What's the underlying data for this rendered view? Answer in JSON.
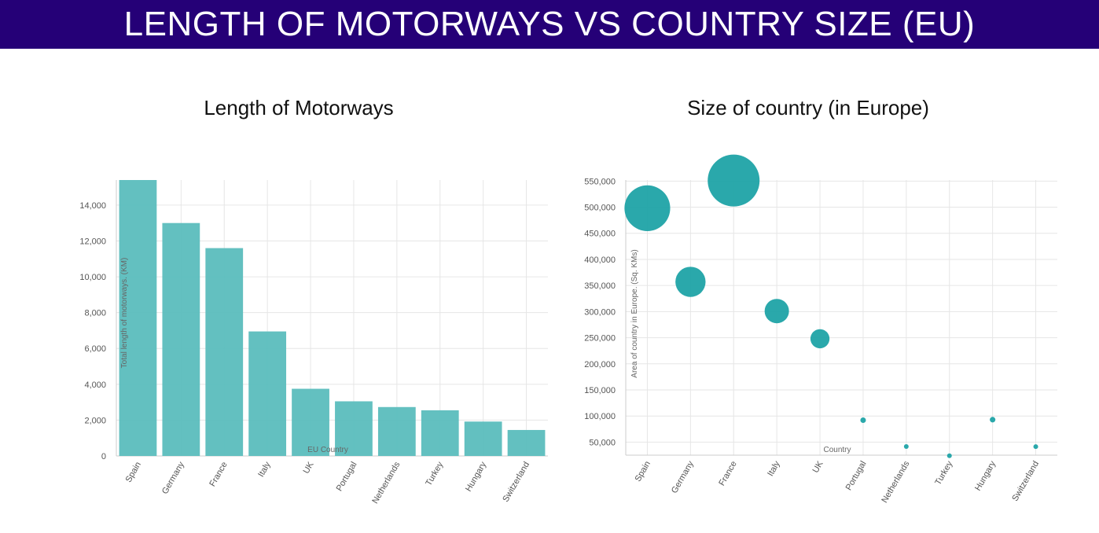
{
  "header": {
    "title": "LENGTH OF MOTORWAYS VS COUNTRY SIZE (EU)"
  },
  "colors": {
    "banner": "#250077",
    "bar": "#5bbdbd",
    "bubble": "#1fa3a6"
  },
  "chart_data": [
    {
      "type": "bar",
      "title": "Length of Motorways",
      "xlabel": "EU Country",
      "ylabel": "Total length of motorways. (KM)",
      "categories": [
        "Spain",
        "Germany",
        "France",
        "Italy",
        "UK",
        "Portugal",
        "Netherlands",
        "Turkey",
        "Hungary",
        "Switzerland"
      ],
      "values": [
        15400,
        13000,
        11600,
        6950,
        3750,
        3050,
        2730,
        2550,
        1920,
        1450
      ],
      "ylim": [
        0,
        15400
      ],
      "yticks": [
        0,
        2000,
        4000,
        6000,
        8000,
        10000,
        12000,
        14000
      ],
      "ytick_labels": [
        "0",
        "2,000",
        "4,000",
        "6,000",
        "8,000",
        "10,000",
        "12,000",
        "14,000"
      ],
      "grid": true
    },
    {
      "type": "scatter",
      "title": "Size of country (in Europe)",
      "xlabel": "Country",
      "ylabel": "Area of country in Europe. (Sq. KMs)",
      "categories": [
        "Spain",
        "Germany",
        "France",
        "Italy",
        "UK",
        "Portugal",
        "Netherlands",
        "Turkey",
        "Hungary",
        "Switzerland"
      ],
      "values": [
        498000,
        357000,
        551000,
        301000,
        248000,
        92000,
        41500,
        23800,
        93000,
        41300
      ],
      "bubble_size_by": "value",
      "ylim": [
        25000,
        552000
      ],
      "yticks": [
        50000,
        100000,
        150000,
        200000,
        250000,
        300000,
        350000,
        400000,
        450000,
        500000,
        550000
      ],
      "ytick_labels": [
        "50,000",
        "100,000",
        "150,000",
        "200,000",
        "250,000",
        "300,000",
        "350,000",
        "400,000",
        "450,000",
        "500,000",
        "550,000"
      ],
      "grid": true
    }
  ]
}
